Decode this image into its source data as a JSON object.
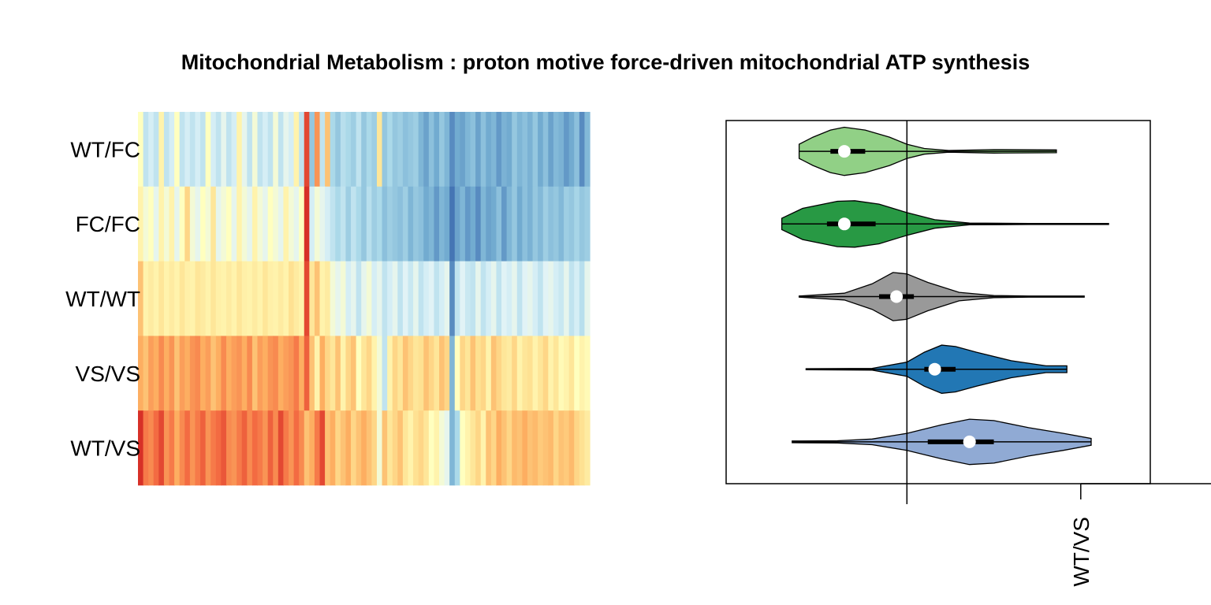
{
  "chart_data": [
    {
      "type": "heatmap",
      "title": "Mitochondrial Metabolism : proton motive force-driven mitochondrial ATP synthesis",
      "rows": [
        "WT/FC",
        "FC/FC",
        "WT/WT",
        "VS/VS",
        "WT/VS"
      ],
      "palette": [
        "#D73027",
        "#F46D43",
        "#FDAE61",
        "#FEE090",
        "#FFFFBF",
        "#E0F3F8",
        "#ABD9E9",
        "#74ADD1",
        "#4575B4"
      ],
      "values": [
        [
          0.5,
          0.7,
          0.65,
          0.7,
          0.45,
          0.7,
          0.65,
          0.5,
          0.7,
          0.65,
          0.7,
          0.65,
          0.7,
          0.5,
          0.65,
          0.7,
          0.6,
          0.7,
          0.65,
          0.45,
          0.6,
          0.7,
          0.55,
          0.7,
          0.65,
          0.7,
          0.55,
          0.7,
          0.6,
          0.65,
          0.45,
          0.7,
          0.05,
          0.8,
          0.2,
          0.7,
          0.3,
          0.75,
          0.8,
          0.72,
          0.75,
          0.78,
          0.7,
          0.8,
          0.75,
          0.78,
          0.4,
          0.8,
          0.75,
          0.8,
          0.78,
          0.82,
          0.8,
          0.78,
          0.85,
          0.9,
          0.82,
          0.88,
          0.8,
          0.85,
          0.95,
          0.88,
          0.9,
          0.85,
          0.82,
          0.9,
          0.82,
          0.88,
          0.85,
          0.92,
          0.86,
          0.88,
          0.8,
          0.85,
          0.82,
          0.86,
          0.8,
          0.88,
          0.82,
          0.9,
          0.84,
          0.86,
          0.92,
          0.88,
          0.82,
          0.95,
          0.84
        ],
        [
          0.45,
          0.55,
          0.5,
          0.6,
          0.45,
          0.55,
          0.45,
          0.6,
          0.5,
          0.35,
          0.55,
          0.6,
          0.5,
          0.55,
          0.4,
          0.6,
          0.55,
          0.5,
          0.6,
          0.45,
          0.55,
          0.6,
          0.45,
          0.55,
          0.6,
          0.5,
          0.55,
          0.6,
          0.45,
          0.55,
          0.6,
          0.5,
          0.0,
          0.65,
          0.55,
          0.6,
          0.65,
          0.7,
          0.75,
          0.7,
          0.78,
          0.7,
          0.75,
          0.8,
          0.72,
          0.78,
          0.75,
          0.82,
          0.78,
          0.8,
          0.82,
          0.78,
          0.85,
          0.8,
          0.82,
          0.88,
          0.85,
          0.92,
          0.85,
          0.88,
          1.0,
          0.9,
          0.85,
          0.92,
          0.88,
          0.95,
          0.85,
          0.9,
          0.88,
          0.82,
          0.92,
          0.85,
          0.8,
          0.88,
          0.82,
          0.86,
          0.8,
          0.84,
          0.78,
          0.82,
          0.8,
          0.84,
          0.78,
          0.8,
          0.76,
          0.8,
          0.78
        ],
        [
          0.3,
          0.45,
          0.42,
          0.45,
          0.4,
          0.45,
          0.42,
          0.45,
          0.4,
          0.44,
          0.45,
          0.4,
          0.42,
          0.45,
          0.4,
          0.44,
          0.45,
          0.42,
          0.45,
          0.4,
          0.44,
          0.45,
          0.42,
          0.45,
          0.4,
          0.44,
          0.45,
          0.42,
          0.45,
          0.38,
          0.42,
          0.45,
          0.05,
          0.4,
          0.3,
          0.45,
          0.42,
          0.55,
          0.6,
          0.55,
          0.65,
          0.6,
          0.7,
          0.6,
          0.55,
          0.65,
          0.6,
          0.7,
          0.65,
          0.6,
          0.7,
          0.62,
          0.68,
          0.6,
          0.7,
          0.65,
          0.62,
          0.7,
          0.65,
          0.6,
          0.95,
          0.7,
          0.62,
          0.68,
          0.7,
          0.6,
          0.7,
          0.65,
          0.6,
          0.7,
          0.62,
          0.65,
          0.6,
          0.7,
          0.62,
          0.6,
          0.65,
          0.7,
          0.62,
          0.6,
          0.65,
          0.68,
          0.6,
          0.7,
          0.65,
          0.72,
          0.6
        ],
        [
          0.25,
          0.3,
          0.22,
          0.25,
          0.18,
          0.25,
          0.2,
          0.3,
          0.22,
          0.25,
          0.2,
          0.18,
          0.25,
          0.22,
          0.3,
          0.25,
          0.18,
          0.25,
          0.22,
          0.2,
          0.25,
          0.18,
          0.3,
          0.22,
          0.25,
          0.2,
          0.18,
          0.25,
          0.22,
          0.2,
          0.15,
          0.25,
          0.1,
          0.3,
          0.45,
          0.25,
          0.35,
          0.4,
          0.3,
          0.45,
          0.35,
          0.3,
          0.5,
          0.4,
          0.35,
          0.45,
          0.55,
          0.7,
          0.45,
          0.35,
          0.4,
          0.3,
          0.35,
          0.4,
          0.38,
          0.3,
          0.35,
          0.4,
          0.3,
          0.35,
          0.85,
          0.5,
          0.35,
          0.4,
          0.3,
          0.38,
          0.35,
          0.45,
          0.3,
          0.35,
          0.4,
          0.42,
          0.35,
          0.45,
          0.4,
          0.38,
          0.45,
          0.4,
          0.35,
          0.45,
          0.4,
          0.48,
          0.45,
          0.4,
          0.5,
          0.45,
          0.48
        ],
        [
          0.0,
          0.15,
          0.18,
          0.12,
          0.05,
          0.2,
          0.15,
          0.25,
          0.18,
          0.12,
          0.2,
          0.15,
          0.1,
          0.2,
          0.15,
          0.12,
          0.08,
          0.18,
          0.2,
          0.15,
          0.1,
          0.18,
          0.12,
          0.15,
          0.2,
          0.1,
          0.18,
          0.05,
          0.15,
          0.2,
          0.12,
          0.18,
          0.3,
          0.25,
          0.15,
          0.05,
          0.3,
          0.25,
          0.35,
          0.3,
          0.25,
          0.35,
          0.3,
          0.25,
          0.3,
          0.35,
          0.55,
          0.3,
          0.4,
          0.35,
          0.3,
          0.4,
          0.45,
          0.38,
          0.35,
          0.4,
          0.5,
          0.45,
          0.55,
          0.6,
          0.85,
          0.75,
          0.5,
          0.45,
          0.4,
          0.35,
          0.45,
          0.3,
          0.35,
          0.25,
          0.3,
          0.35,
          0.28,
          0.3,
          0.25,
          0.3,
          0.28,
          0.32,
          0.3,
          0.28,
          0.35,
          0.3,
          0.32,
          0.28,
          0.35,
          0.38,
          0.42
        ]
      ]
    },
    {
      "type": "violin",
      "orientation": "horizontal",
      "series": [
        {
          "color": "#91D086",
          "min": -0.31,
          "q1": -0.22,
          "median": -0.18,
          "q3": -0.12,
          "max": 0.43,
          "density": [
            [
              -0.31,
              0.25
            ],
            [
              -0.27,
              0.5
            ],
            [
              -0.22,
              0.75
            ],
            [
              -0.18,
              0.85
            ],
            [
              -0.12,
              0.75
            ],
            [
              -0.05,
              0.5
            ],
            [
              0.0,
              0.25
            ],
            [
              0.05,
              0.1
            ],
            [
              0.12,
              0.03
            ],
            [
              0.25,
              0.06
            ],
            [
              0.43,
              0.05
            ]
          ]
        },
        {
          "color": "#289944",
          "min": -0.36,
          "q1": -0.23,
          "median": -0.18,
          "q3": -0.09,
          "max": 0.58,
          "density": [
            [
              -0.36,
              0.2
            ],
            [
              -0.3,
              0.55
            ],
            [
              -0.2,
              0.8
            ],
            [
              -0.15,
              0.82
            ],
            [
              -0.08,
              0.7
            ],
            [
              0.0,
              0.4
            ],
            [
              0.08,
              0.15
            ],
            [
              0.18,
              0.03
            ],
            [
              0.35,
              0.02
            ],
            [
              0.58,
              0.02
            ]
          ]
        },
        {
          "color": "#999999",
          "min": -0.31,
          "q1": -0.08,
          "median": -0.03,
          "q3": 0.02,
          "max": 0.51,
          "density": [
            [
              -0.31,
              0.02
            ],
            [
              -0.18,
              0.12
            ],
            [
              -0.1,
              0.45
            ],
            [
              -0.04,
              0.85
            ],
            [
              0.0,
              0.8
            ],
            [
              0.06,
              0.5
            ],
            [
              0.15,
              0.15
            ],
            [
              0.25,
              0.04
            ],
            [
              0.35,
              0.02
            ],
            [
              0.51,
              0.02
            ]
          ]
        },
        {
          "color": "#2277B4",
          "min": -0.29,
          "q1": 0.05,
          "median": 0.08,
          "q3": 0.14,
          "max": 0.46,
          "density": [
            [
              -0.29,
              0.02
            ],
            [
              -0.1,
              0.03
            ],
            [
              0.0,
              0.25
            ],
            [
              0.05,
              0.6
            ],
            [
              0.1,
              0.85
            ],
            [
              0.14,
              0.8
            ],
            [
              0.2,
              0.6
            ],
            [
              0.3,
              0.3
            ],
            [
              0.4,
              0.12
            ],
            [
              0.46,
              0.12
            ]
          ]
        },
        {
          "color": "#90AAD4",
          "min": -0.33,
          "q1": 0.06,
          "median": 0.18,
          "q3": 0.25,
          "max": 0.53,
          "density": [
            [
              -0.33,
              0.03
            ],
            [
              -0.2,
              0.04
            ],
            [
              -0.1,
              0.1
            ],
            [
              0.0,
              0.3
            ],
            [
              0.1,
              0.6
            ],
            [
              0.18,
              0.8
            ],
            [
              0.25,
              0.75
            ],
            [
              0.35,
              0.5
            ],
            [
              0.45,
              0.3
            ],
            [
              0.53,
              0.12
            ]
          ]
        }
      ],
      "reference_line": 0.0,
      "xlim": [
        -0.52,
        0.7
      ],
      "tick_labels": [
        {
          "at": 0.5,
          "label": "WT/VS"
        }
      ]
    }
  ]
}
